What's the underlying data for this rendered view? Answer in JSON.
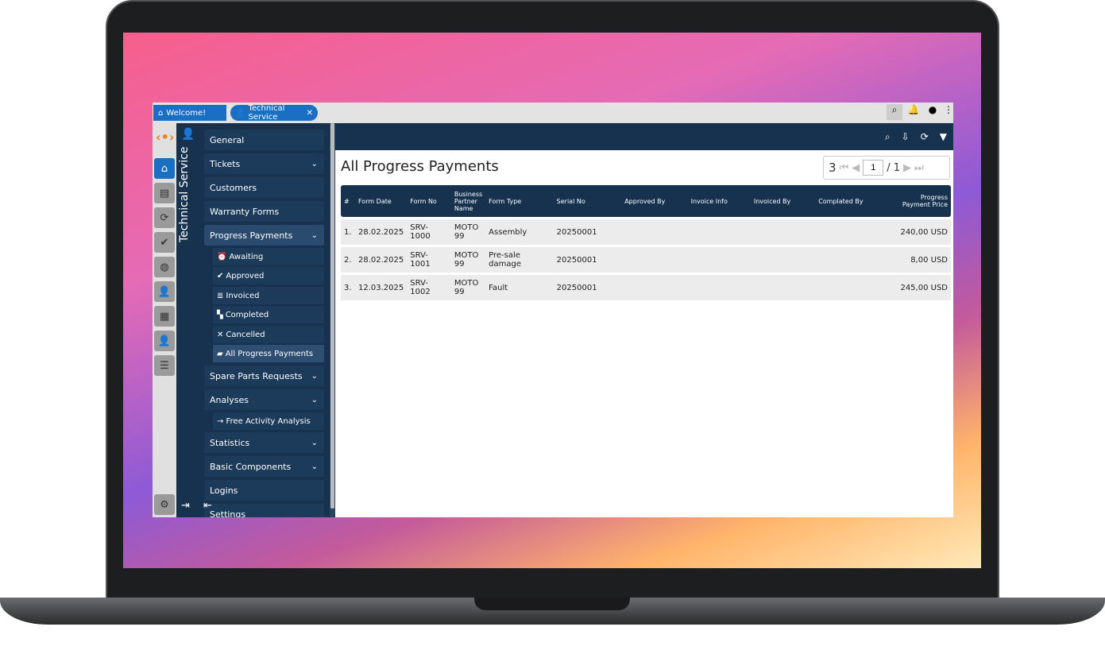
{
  "tabs": [
    {
      "label": "Welcome!",
      "icon": "home-icon"
    },
    {
      "label": "Technical Service",
      "icon": "technician-icon"
    }
  ],
  "module_title": "Technical Service",
  "menu": {
    "items": [
      "General",
      "Tickets",
      "Customers",
      "Warranty Forms",
      "Progress Payments"
    ],
    "progress_sub": [
      "Awaiting",
      "Approved",
      "Invoiced",
      "Completed",
      "Cancelled",
      "All Progress Payments"
    ],
    "after": [
      "Spare Parts Requests",
      "Analyses"
    ],
    "analyses_sub": "→ Free Activity Analysis",
    "tail": [
      "Statistics",
      "Basic Components",
      "Logins",
      "Settings"
    ]
  },
  "page": {
    "title": "All Progress Payments",
    "count": "3",
    "page_input": "1",
    "page_total": "/ 1"
  },
  "table": {
    "headers": [
      "#",
      "Form Date",
      "Form No",
      "Business Partner Name",
      "Form Type",
      "Serial No",
      "Approved By",
      "Invoice Info",
      "Invoiced By",
      "Complated By",
      "Progress Payment Price"
    ],
    "rows": [
      [
        "1.",
        "28.02.2025",
        "SRV-1000",
        "MOTO 99",
        "Assembly",
        "20250001",
        "",
        "",
        "",
        "",
        "240,00 USD"
      ],
      [
        "2.",
        "28.02.2025",
        "SRV-1001",
        "MOTO 99",
        "Pre-sale damage",
        "20250001",
        "",
        "",
        "",
        "",
        "8,00 USD"
      ],
      [
        "3.",
        "12.03.2025",
        "SRV-1002",
        "MOTO 99",
        "Fault",
        "20250001",
        "",
        "",
        "",
        "",
        "245,00 USD"
      ]
    ]
  },
  "colors": {
    "navy": "#16324f",
    "tab_blue": "#1a6fc2",
    "accent_orange": "#f07c1e"
  }
}
